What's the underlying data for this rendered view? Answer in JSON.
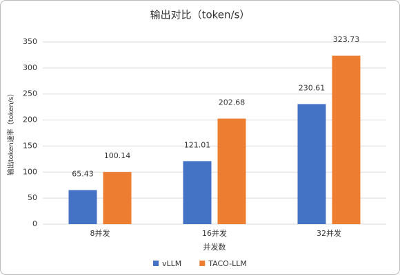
{
  "chart_data": {
    "type": "bar",
    "title": "输出对比（token/s）",
    "y_label": "输出token速率（token/s）",
    "x_label": "并发数",
    "categories": [
      "8并发",
      "16并发",
      "32并发"
    ],
    "series": [
      {
        "name": "vLLM",
        "color": "#4472c4",
        "values": [
          65.43,
          121.01,
          230.61
        ]
      },
      {
        "name": "TACO-LLM",
        "color": "#ed7d31",
        "values": [
          100.14,
          202.68,
          323.73
        ]
      }
    ],
    "ylim": [
      0,
      350
    ],
    "yticks": [
      0,
      50,
      100,
      150,
      200,
      250,
      300,
      350
    ],
    "grid": true,
    "legend": "bottom"
  }
}
